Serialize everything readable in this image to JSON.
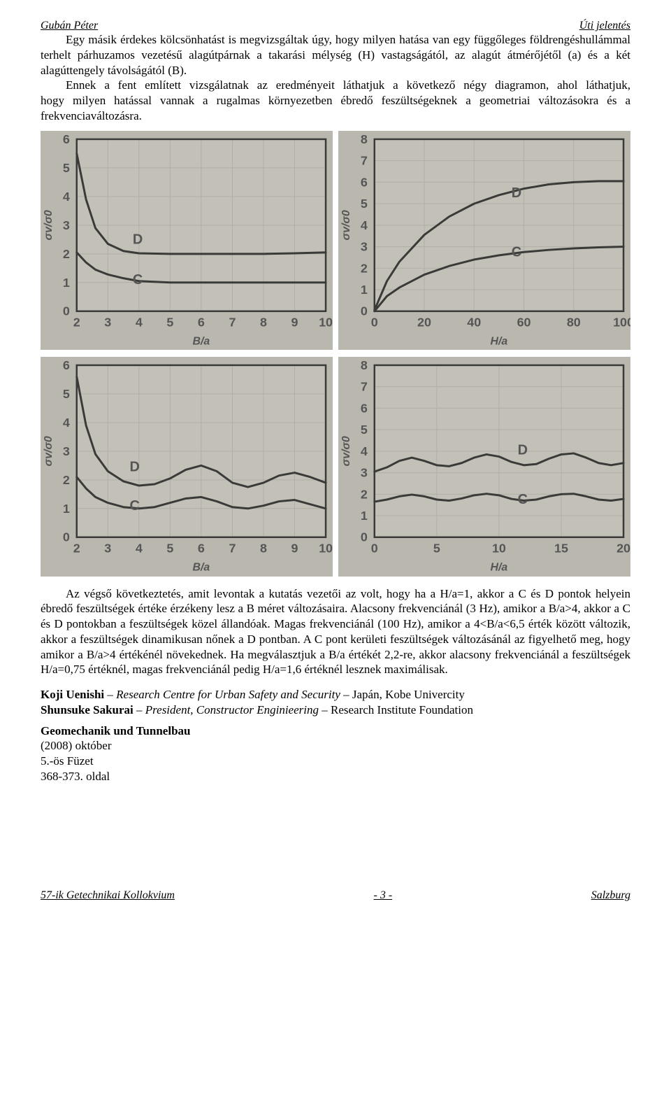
{
  "header": {
    "author": "Gubán Péter",
    "title_right": "Úti jelentés"
  },
  "body": {
    "p1": "Egy másik érdekes kölcsönhatást is megvizsgáltak úgy, hogy milyen hatása van egy függőleges földrengéshullámmal terhelt párhuzamos vezetésű alagútpárnak a takarási mélység (H) vastagságától, az alagút átmérőjétől (a) és a két alagúttengely távolságától (B).",
    "p2": "Ennek a fent említett vizsgálatnak az eredményeit láthatjuk a következő négy diagramon, ahol láthatjuk, hogy milyen hatással vannak a rugalmas környezetben ébredő feszültségeknek a geometriai változásokra és a frekvenciaváltozásra.",
    "p3": "Az végső következtetés, amit levontak a kutatás vezetői az volt, hogy ha a H/a=1, akkor a C és D pontok helyein ébredő feszültségek értéke érzékeny lesz a B méret változásaira. Alacsony frekvenciánál (3 Hz), amikor a B/a>4, akkor a C és D pontokban a feszültségek közel állandóak. Magas frekvenciánál (100 Hz), amikor a 4<B/a<6,5 érték között változik, akkor a feszültségek dinamikusan nőnek a D pontban. A C pont kerületi feszültségek változásánál az figyelhető meg, hogy amikor a B/a>4 értékénél növekednek. Ha megválasztjuk a B/a értékét 2,2-re, akkor alacsony frekvenciánál a feszültségek H/a=0,75 értéknél, magas frekvenciánál pedig H/a=1,6 értéknél lesznek maximálisak."
  },
  "refs": {
    "a1_name": "Koji Uenishi",
    "a1_title": " – Research Centre for Urban Safety and Security – ",
    "a1_tail": "Japán, Kobe Univercity",
    "a2_name": "Shunsuke Sakurai",
    "a2_title": " – President, Constructor Enginieering – ",
    "a2_tail": "Research Institute Foundation",
    "journal": "Geomechanik und Tunnelbau",
    "issue": "(2008) október",
    "volume": "5.-ös Füzet",
    "pages": "368-373. oldal"
  },
  "footer": {
    "left": "57-ik Getechnikai Kollokvium",
    "center": "- 3 -",
    "right": "Salzburg"
  },
  "charts": {
    "bg": "#b9b7ae",
    "plot_bg": "#c3c1b7",
    "axis_color": "#3a3a38",
    "grid_color": "#b0aea5",
    "tick_fontsize": 18,
    "label_fontsize": 16,
    "curve_color": "#3a3a38",
    "series_labels": {
      "C": "C",
      "D": "D"
    },
    "top_left": {
      "type": "line",
      "xlabel": "B/a",
      "ylabel": "σv/σ0",
      "xlim": [
        2,
        10
      ],
      "xtick_step": 1,
      "ylim": [
        0,
        6
      ],
      "ytick_step": 1,
      "series": {
        "D": [
          [
            2,
            5.5
          ],
          [
            2.3,
            3.9
          ],
          [
            2.6,
            2.9
          ],
          [
            3,
            2.35
          ],
          [
            3.5,
            2.1
          ],
          [
            4,
            2.02
          ],
          [
            5,
            2.0
          ],
          [
            6,
            2.0
          ],
          [
            7,
            2.0
          ],
          [
            8,
            2.0
          ],
          [
            9,
            2.02
          ],
          [
            10,
            2.05
          ]
        ],
        "C": [
          [
            2,
            2.05
          ],
          [
            2.3,
            1.7
          ],
          [
            2.6,
            1.45
          ],
          [
            3,
            1.28
          ],
          [
            3.5,
            1.15
          ],
          [
            4,
            1.05
          ],
          [
            5,
            1.0
          ],
          [
            6,
            1.0
          ],
          [
            7,
            1.0
          ],
          [
            8,
            1.0
          ],
          [
            9,
            1.0
          ],
          [
            10,
            1.0
          ]
        ]
      },
      "label_pos": {
        "D": [
          3.8,
          2.35
        ],
        "C": [
          3.8,
          0.95
        ]
      }
    },
    "top_right": {
      "type": "line",
      "xlabel": "H/a",
      "ylabel": "σv/σ0",
      "xlim": [
        0,
        100
      ],
      "xtick_step": 20,
      "ylim": [
        0,
        8
      ],
      "ytick_step": 1,
      "series": {
        "D": [
          [
            0,
            0.05
          ],
          [
            5,
            1.4
          ],
          [
            10,
            2.3
          ],
          [
            20,
            3.55
          ],
          [
            30,
            4.4
          ],
          [
            40,
            5.0
          ],
          [
            50,
            5.4
          ],
          [
            60,
            5.7
          ],
          [
            70,
            5.9
          ],
          [
            80,
            6.0
          ],
          [
            90,
            6.05
          ],
          [
            100,
            6.05
          ]
        ],
        "C": [
          [
            0,
            0.0
          ],
          [
            5,
            0.7
          ],
          [
            10,
            1.1
          ],
          [
            20,
            1.7
          ],
          [
            30,
            2.1
          ],
          [
            40,
            2.4
          ],
          [
            50,
            2.6
          ],
          [
            60,
            2.75
          ],
          [
            70,
            2.85
          ],
          [
            80,
            2.92
          ],
          [
            90,
            2.97
          ],
          [
            100,
            3.0
          ]
        ]
      },
      "label_pos": {
        "D": [
          55,
          5.3
        ],
        "C": [
          55,
          2.55
        ]
      }
    },
    "bot_left": {
      "type": "line",
      "xlabel": "B/a",
      "ylabel": "σv/σ0",
      "xlim": [
        2,
        10
      ],
      "xtick_step": 1,
      "ylim": [
        0,
        6
      ],
      "ytick_step": 1,
      "series": {
        "D": [
          [
            2,
            5.6
          ],
          [
            2.3,
            3.9
          ],
          [
            2.6,
            2.9
          ],
          [
            3,
            2.3
          ],
          [
            3.5,
            1.95
          ],
          [
            4,
            1.8
          ],
          [
            4.5,
            1.85
          ],
          [
            5,
            2.05
          ],
          [
            5.5,
            2.35
          ],
          [
            6,
            2.5
          ],
          [
            6.5,
            2.3
          ],
          [
            7,
            1.9
          ],
          [
            7.5,
            1.75
          ],
          [
            8,
            1.9
          ],
          [
            8.5,
            2.15
          ],
          [
            9,
            2.25
          ],
          [
            9.5,
            2.1
          ],
          [
            10,
            1.9
          ]
        ],
        "C": [
          [
            2,
            2.1
          ],
          [
            2.3,
            1.7
          ],
          [
            2.6,
            1.4
          ],
          [
            3,
            1.2
          ],
          [
            3.5,
            1.05
          ],
          [
            4,
            1.0
          ],
          [
            4.5,
            1.05
          ],
          [
            5,
            1.2
          ],
          [
            5.5,
            1.35
          ],
          [
            6,
            1.4
          ],
          [
            6.5,
            1.25
          ],
          [
            7,
            1.05
          ],
          [
            7.5,
            1.0
          ],
          [
            8,
            1.1
          ],
          [
            8.5,
            1.25
          ],
          [
            9,
            1.3
          ],
          [
            9.5,
            1.15
          ],
          [
            10,
            1.0
          ]
        ]
      },
      "label_pos": {
        "D": [
          3.7,
          2.3
        ],
        "C": [
          3.7,
          0.95
        ]
      }
    },
    "bot_right": {
      "type": "line",
      "xlabel": "H/a",
      "ylabel": "σv/σ0",
      "xlim": [
        0,
        20
      ],
      "xtick_step": 5,
      "ylim": [
        0,
        8
      ],
      "ytick_step": 1,
      "series": {
        "D": [
          [
            0,
            3.05
          ],
          [
            1,
            3.25
          ],
          [
            2,
            3.55
          ],
          [
            3,
            3.7
          ],
          [
            4,
            3.55
          ],
          [
            5,
            3.35
          ],
          [
            6,
            3.3
          ],
          [
            7,
            3.45
          ],
          [
            8,
            3.7
          ],
          [
            9,
            3.85
          ],
          [
            10,
            3.75
          ],
          [
            11,
            3.5
          ],
          [
            12,
            3.35
          ],
          [
            13,
            3.4
          ],
          [
            14,
            3.65
          ],
          [
            15,
            3.85
          ],
          [
            16,
            3.9
          ],
          [
            17,
            3.7
          ],
          [
            18,
            3.45
          ],
          [
            19,
            3.35
          ],
          [
            20,
            3.45
          ]
        ],
        "C": [
          [
            0,
            1.65
          ],
          [
            1,
            1.75
          ],
          [
            2,
            1.9
          ],
          [
            3,
            1.98
          ],
          [
            4,
            1.9
          ],
          [
            5,
            1.75
          ],
          [
            6,
            1.7
          ],
          [
            7,
            1.8
          ],
          [
            8,
            1.95
          ],
          [
            9,
            2.02
          ],
          [
            10,
            1.95
          ],
          [
            11,
            1.78
          ],
          [
            12,
            1.7
          ],
          [
            13,
            1.75
          ],
          [
            14,
            1.9
          ],
          [
            15,
            2.0
          ],
          [
            16,
            2.02
          ],
          [
            17,
            1.9
          ],
          [
            18,
            1.75
          ],
          [
            19,
            1.7
          ],
          [
            20,
            1.78
          ]
        ]
      },
      "label_pos": {
        "D": [
          11.5,
          3.85
        ],
        "C": [
          11.5,
          1.55
        ]
      }
    }
  }
}
